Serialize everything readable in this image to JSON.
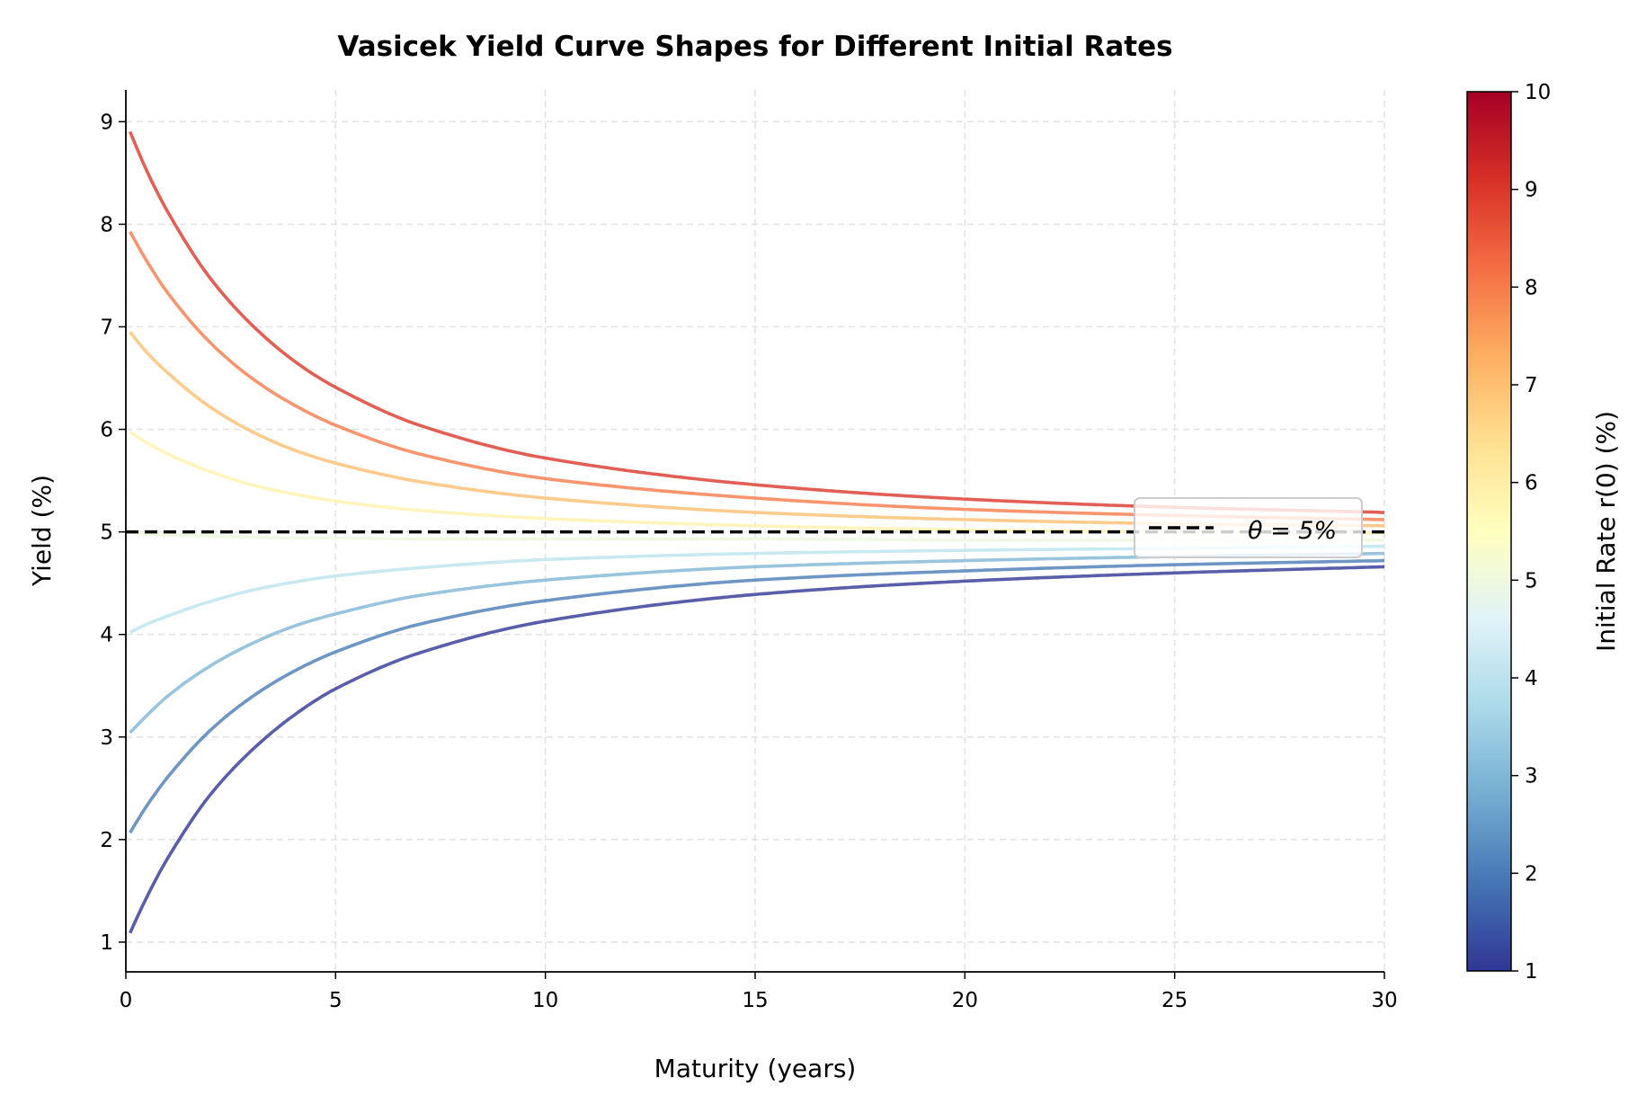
{
  "chart_data": {
    "type": "line",
    "title": "Vasicek Yield Curve Shapes for Different Initial Rates",
    "xlabel": "Maturity (years)",
    "ylabel": "Yield (%)",
    "xlim": [
      0,
      30
    ],
    "ylim": [
      0.71,
      9.31
    ],
    "xticks": [
      "0",
      "5",
      "10",
      "15",
      "20",
      "25",
      "30"
    ],
    "yticks": [
      "1",
      "2",
      "3",
      "4",
      "5",
      "6",
      "7",
      "8",
      "9"
    ],
    "grid": true,
    "x": [
      0,
      0.5,
      1,
      2,
      3,
      4,
      5,
      7,
      10,
      15,
      20,
      25,
      30
    ],
    "series": [
      {
        "r0": 1,
        "color": "#313695",
        "values": [
          1.0,
          1.44,
          1.82,
          2.43,
          2.87,
          3.21,
          3.47,
          3.82,
          4.13,
          4.39,
          4.52,
          4.6,
          4.66
        ]
      },
      {
        "r0": 2,
        "color": "#4a7cb7",
        "values": [
          2.0,
          2.33,
          2.61,
          3.06,
          3.39,
          3.64,
          3.83,
          4.1,
          4.33,
          4.53,
          4.62,
          4.68,
          4.72
        ]
      },
      {
        "r0": 3,
        "color": "#7fb5d5",
        "values": [
          3.0,
          3.21,
          3.4,
          3.69,
          3.91,
          4.08,
          4.2,
          4.38,
          4.53,
          4.66,
          4.72,
          4.76,
          4.79
        ]
      },
      {
        "r0": 4,
        "color": "#bce3ee",
        "values": [
          4.0,
          4.1,
          4.18,
          4.32,
          4.43,
          4.51,
          4.57,
          4.65,
          4.73,
          4.79,
          4.82,
          4.84,
          4.86
        ]
      },
      {
        "r0": 5,
        "color": "#edf8df",
        "values": [
          5.0,
          4.98,
          4.97,
          4.96,
          4.95,
          4.94,
          4.94,
          4.93,
          4.93,
          4.93,
          4.92,
          4.92,
          4.92
        ]
      },
      {
        "r0": 6,
        "color": "#fef2ab",
        "values": [
          6.0,
          5.87,
          5.76,
          5.59,
          5.46,
          5.37,
          5.3,
          5.21,
          5.13,
          5.06,
          5.02,
          5.0,
          4.99
        ]
      },
      {
        "r0": 7,
        "color": "#fdbf71",
        "values": [
          7.0,
          6.75,
          6.55,
          6.22,
          5.98,
          5.8,
          5.67,
          5.49,
          5.33,
          5.19,
          5.12,
          5.08,
          5.06
        ]
      },
      {
        "r0": 8,
        "color": "#f67b4a",
        "values": [
          8.0,
          7.64,
          7.33,
          6.85,
          6.5,
          6.24,
          6.04,
          5.76,
          5.52,
          5.33,
          5.22,
          5.16,
          5.12
        ]
      },
      {
        "r0": 9,
        "color": "#da372a",
        "values": [
          9.0,
          8.52,
          8.12,
          7.48,
          7.02,
          6.67,
          6.41,
          6.04,
          5.72,
          5.46,
          5.32,
          5.24,
          5.19
        ]
      }
    ],
    "reference_line": {
      "y": 5,
      "label": "θ = 5%",
      "style": "dashed",
      "color": "#000000"
    },
    "legend": {
      "placement": "center-right",
      "entries": [
        "θ = 5%"
      ]
    },
    "colorbar": {
      "label": "Initial Rate r(0) (%)",
      "range": [
        1,
        10
      ],
      "ticks": [
        "1",
        "2",
        "3",
        "4",
        "5",
        "6",
        "7",
        "8",
        "9",
        "10"
      ],
      "colormap": "RdYlBu_r",
      "stops": [
        "#313695",
        "#4575b4",
        "#74add1",
        "#abd9e9",
        "#e0f3f8",
        "#ffffbf",
        "#fee090",
        "#fdae61",
        "#f46d43",
        "#d73027",
        "#a50026"
      ]
    }
  }
}
